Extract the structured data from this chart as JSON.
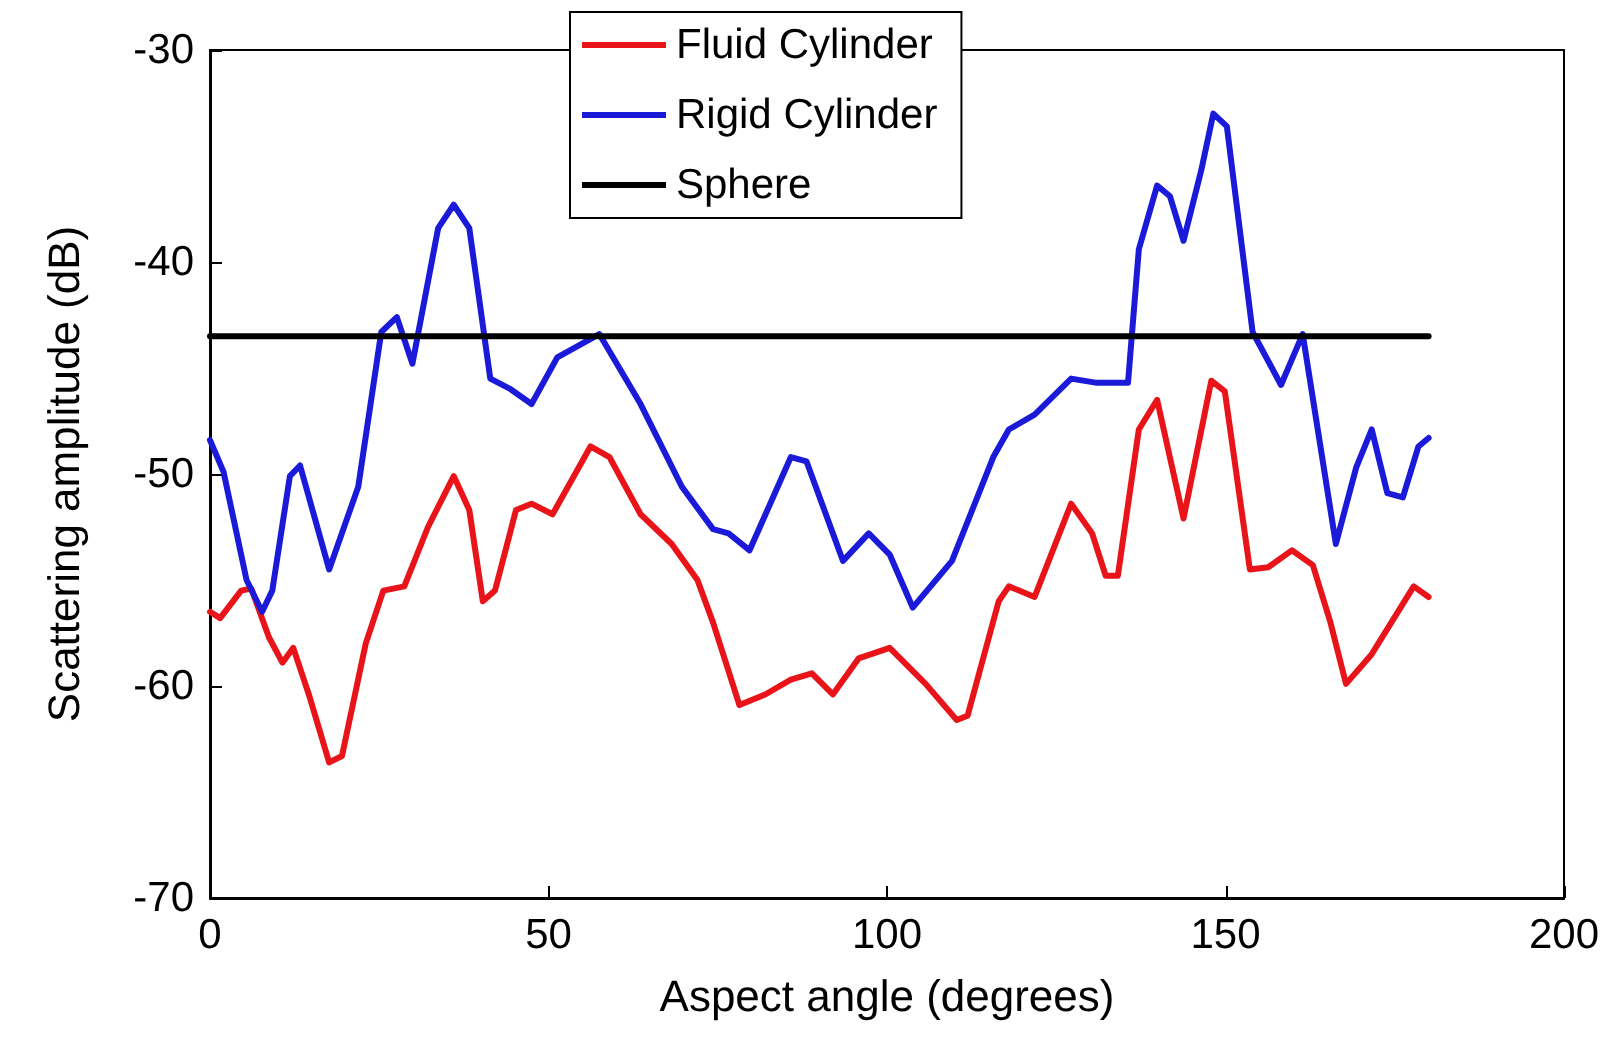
{
  "chart_data": {
    "type": "line",
    "xlabel": "Aspect angle (degrees)",
    "ylabel": "Scattering amplitude (dB)",
    "xlim": [
      0,
      200
    ],
    "xticks": [
      0,
      50,
      100,
      150,
      200
    ],
    "ylim": [
      -70,
      -30
    ],
    "yticks": [
      -70,
      -60,
      -50,
      -40,
      -30
    ],
    "grid": false,
    "legend": "top",
    "marker": "none",
    "line_style": "solid",
    "series": [
      {
        "name": "Fluid Cylinder",
        "color": "#e8141a",
        "x": [
          0,
          1.5,
          4.6,
          6.1,
          8.7,
          10.7,
          12.3,
          14.6,
          17.6,
          19.5,
          23,
          25.6,
          28.7,
          32.2,
          36,
          38.3,
          40.3,
          42.1,
          45.2,
          47.5,
          50.6,
          56.2,
          59,
          63.6,
          68.2,
          72,
          74.3,
          78.2,
          82,
          85.8,
          88.9,
          92,
          95.8,
          100.4,
          105.7,
          110.3,
          111.9,
          116.5,
          118,
          121.8,
          127.2,
          130.3,
          132.3,
          134.1,
          137.2,
          139.9,
          143.8,
          147.9,
          149.9,
          153.6,
          156.3,
          159.8,
          162.9,
          165.5,
          167.8,
          171.6,
          177.8,
          180
        ],
        "values": [
          -56.5,
          -56.8,
          -55.5,
          -55.4,
          -57.7,
          -58.9,
          -58.2,
          -60.4,
          -63.6,
          -63.3,
          -58,
          -55.5,
          -55.3,
          -52.5,
          -50.1,
          -51.7,
          -56,
          -55.5,
          -51.7,
          -51.4,
          -51.9,
          -48.7,
          -49.2,
          -51.9,
          -53.3,
          -55,
          -57,
          -60.9,
          -60.4,
          -59.7,
          -59.4,
          -60.4,
          -58.7,
          -58.2,
          -59.9,
          -61.6,
          -61.4,
          -56,
          -55.3,
          -55.8,
          -51.4,
          -52.8,
          -54.8,
          -54.8,
          -47.9,
          -46.5,
          -52.1,
          -45.6,
          -46.1,
          -54.5,
          -54.4,
          -53.6,
          -54.3,
          -57,
          -59.9,
          -58.5,
          -55.3,
          -55.8
        ]
      },
      {
        "name": "Rigid Cylinder",
        "color": "#1a1ad8",
        "x": [
          0,
          2,
          5.4,
          7.7,
          9.2,
          11.8,
          13.3,
          17.6,
          21.9,
          25.3,
          27.6,
          29.9,
          33.7,
          36,
          38.3,
          41.4,
          44.4,
          47.5,
          51.3,
          57.5,
          63.6,
          69.7,
          74.3,
          76.6,
          79.7,
          85.8,
          88.1,
          93.5,
          97.3,
          100.4,
          103.8,
          109.6,
          115.7,
          118,
          121.8,
          127.2,
          131,
          135.6,
          137.2,
          139.9,
          141.8,
          143.8,
          146.4,
          148.2,
          150.2,
          154,
          158.2,
          161.4,
          166.3,
          169.3,
          171.6,
          173.9,
          176.2,
          178.5,
          180
        ],
        "values": [
          -48.4,
          -49.9,
          -55,
          -56.5,
          -55.5,
          -50.1,
          -49.6,
          -54.5,
          -50.6,
          -43.3,
          -42.6,
          -44.8,
          -38.4,
          -37.3,
          -38.4,
          -45.5,
          -46,
          -46.7,
          -44.5,
          -43.4,
          -46.7,
          -50.6,
          -52.6,
          -52.8,
          -53.6,
          -49.2,
          -49.4,
          -54.1,
          -52.8,
          -53.8,
          -56.3,
          -54.1,
          -49.2,
          -47.9,
          -47.2,
          -45.5,
          -45.7,
          -45.7,
          -39.4,
          -36.4,
          -36.9,
          -39,
          -35.7,
          -33,
          -33.6,
          -43.3,
          -45.8,
          -43.4,
          -53.3,
          -49.7,
          -47.9,
          -50.9,
          -51.1,
          -48.7,
          -48.3
        ]
      },
      {
        "name": "Sphere",
        "color": "#000000",
        "x": [
          0,
          180
        ],
        "values": [
          -43.5,
          -43.5
        ]
      }
    ]
  }
}
